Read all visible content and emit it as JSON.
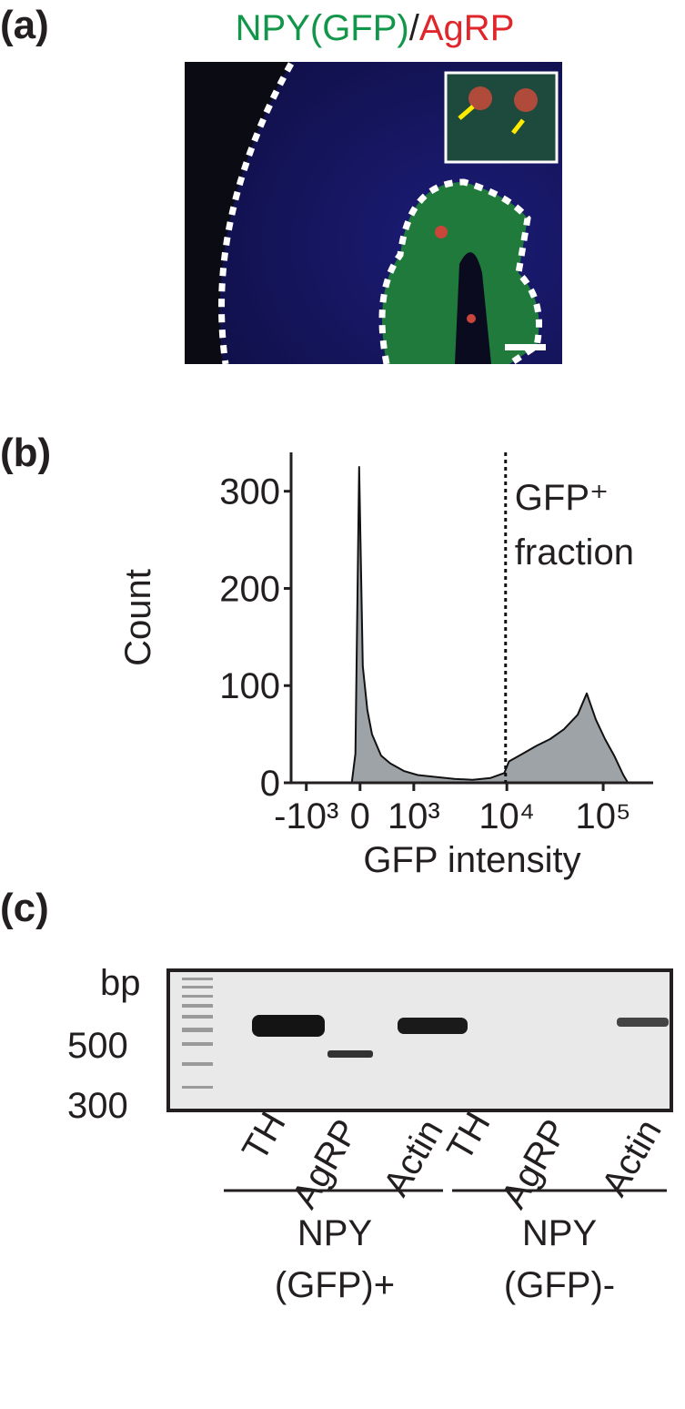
{
  "panel_a": {
    "label": "(a)",
    "title": [
      {
        "text": "NPY(GFP)",
        "color": "#12964a"
      },
      {
        "text": "/",
        "color": "#231f20"
      },
      {
        "text": "AgRP",
        "color": "#e0262b"
      }
    ]
  },
  "chart_data": {
    "type": "area",
    "label": "(b)",
    "xlabel": "GFP intensity",
    "ylabel": "Count",
    "xscale": "biexponential",
    "color": "#9ea3a8",
    "x": [
      -119,
      -66,
      -13,
      39,
      105,
      173,
      314,
      470,
      759,
      1116,
      1777,
      2834,
      4405,
      6770,
      9420,
      10530,
      14650,
      20300,
      28150,
      39080,
      54300,
      67500,
      83900,
      104600,
      130000,
      161700,
      180600
    ],
    "values": [
      0,
      30,
      325,
      120,
      75,
      50,
      28,
      20,
      12,
      8,
      6,
      4,
      3,
      5,
      10,
      22,
      30,
      38,
      45,
      55,
      70,
      92,
      65,
      45,
      28,
      8,
      0
    ],
    "xlim": [
      -1500,
      330000
    ],
    "ylim": [
      0,
      340
    ],
    "xticks": [
      {
        "value": -1000,
        "label": "-10³"
      },
      {
        "value": 0,
        "label": "0"
      },
      {
        "value": 1000,
        "label": "10³"
      },
      {
        "value": 10000,
        "label": "10⁴"
      },
      {
        "value": 100000,
        "label": "10⁵"
      }
    ],
    "yticks": [
      0,
      100,
      200,
      300
    ],
    "gate": 9700,
    "annotation": [
      "GFP⁺",
      "fraction"
    ]
  },
  "panel_c": {
    "label": "(c)",
    "size_unit": "bp",
    "size_markers": [
      "500",
      "300"
    ],
    "lanes": [
      "TH",
      "AgRP",
      "Actin",
      "TH",
      "AgRP",
      "Actin"
    ],
    "groups": [
      [
        "NPY",
        "(GFP)+"
      ],
      [
        "NPY",
        "(GFP)-"
      ]
    ]
  }
}
